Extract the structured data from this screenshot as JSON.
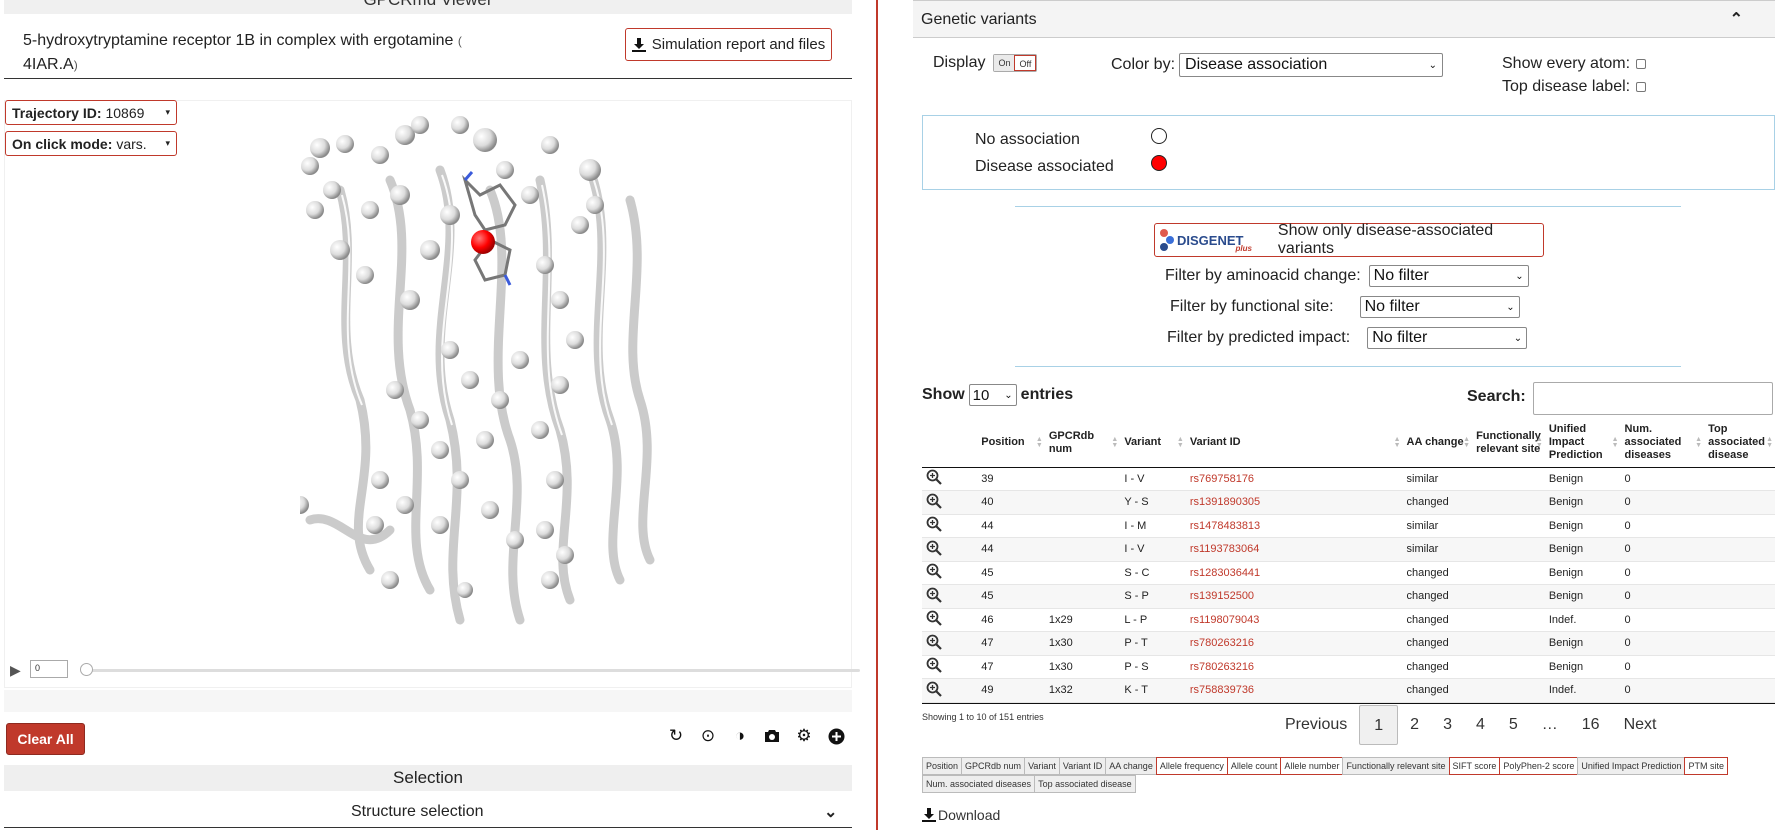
{
  "viewer": {
    "title": "GPCRmd Viewer",
    "sim_name": "5-hydroxytryptamine receptor 1B in complex with ergotamine",
    "sim_pdb_open": "(",
    "sim_pdb": "4IAR.A",
    "sim_pdb_close": ")",
    "report_button": "Simulation report and files",
    "trajectory_label": "Trajectory ID:",
    "trajectory_value": "10869",
    "onclick_label": "On click mode:",
    "onclick_value": "vars.",
    "frame_value": "0",
    "clear_all": "Clear All",
    "selection_title": "Selection",
    "structure_selection": "Structure selection"
  },
  "variants": {
    "header": "Genetic variants",
    "display_label": "Display",
    "toggle_on": "On",
    "toggle_off": "Off",
    "color_by_label": "Color by:",
    "color_by_value": "Disease association",
    "show_every_atom": "Show every atom:",
    "top_disease_label": "Top disease label:",
    "legend": [
      {
        "label": "No association",
        "color": "#ffffff"
      },
      {
        "label": "Disease associated",
        "color": "#ff0000"
      }
    ],
    "disgenet_logo": "DISGENET",
    "disgenet_plus": "plus",
    "disgenet_button": "Show only disease-associated variants",
    "filters": [
      {
        "label": "Filter by aminoacid change:",
        "value": "No filter"
      },
      {
        "label": "Filter by functional site:",
        "value": "No filter"
      },
      {
        "label": "Filter by predicted impact:",
        "value": "No filter"
      }
    ],
    "show_label": "Show",
    "show_value": "10",
    "entries_label": "entries",
    "search_label": "Search:",
    "columns": [
      "Position",
      "GPCRdb num",
      "Variant",
      "Variant ID",
      "AA change",
      "Functionally relevant site",
      "Unified Impact Prediction",
      "Num. associated diseases",
      "Top associated disease"
    ],
    "rows": [
      {
        "pos": "39",
        "gpcrdb": "",
        "variant": "I - V",
        "id": "rs769758176",
        "aa": "similar",
        "func": "",
        "impact": "Benign",
        "num": "0",
        "top": ""
      },
      {
        "pos": "40",
        "gpcrdb": "",
        "variant": "Y - S",
        "id": "rs1391890305",
        "aa": "changed",
        "func": "",
        "impact": "Benign",
        "num": "0",
        "top": ""
      },
      {
        "pos": "44",
        "gpcrdb": "",
        "variant": "I - M",
        "id": "rs1478483813",
        "aa": "similar",
        "func": "",
        "impact": "Benign",
        "num": "0",
        "top": ""
      },
      {
        "pos": "44",
        "gpcrdb": "",
        "variant": "I - V",
        "id": "rs1193783064",
        "aa": "similar",
        "func": "",
        "impact": "Benign",
        "num": "0",
        "top": ""
      },
      {
        "pos": "45",
        "gpcrdb": "",
        "variant": "S - C",
        "id": "rs1283036441",
        "aa": "changed",
        "func": "",
        "impact": "Benign",
        "num": "0",
        "top": ""
      },
      {
        "pos": "45",
        "gpcrdb": "",
        "variant": "S - P",
        "id": "rs139152500",
        "aa": "changed",
        "func": "",
        "impact": "Benign",
        "num": "0",
        "top": ""
      },
      {
        "pos": "46",
        "gpcrdb": "1x29",
        "variant": "L - P",
        "id": "rs1198079043",
        "aa": "changed",
        "func": "",
        "impact": "Indef.",
        "num": "0",
        "top": ""
      },
      {
        "pos": "47",
        "gpcrdb": "1x30",
        "variant": "P - T",
        "id": "rs780263216",
        "aa": "changed",
        "func": "",
        "impact": "Benign",
        "num": "0",
        "top": ""
      },
      {
        "pos": "47",
        "gpcrdb": "1x30",
        "variant": "P - S",
        "id": "rs780263216",
        "aa": "changed",
        "func": "",
        "impact": "Benign",
        "num": "0",
        "top": ""
      },
      {
        "pos": "49",
        "gpcrdb": "1x32",
        "variant": "K - T",
        "id": "rs758839736",
        "aa": "changed",
        "func": "",
        "impact": "Indef.",
        "num": "0",
        "top": ""
      }
    ],
    "info": "Showing 1 to 10 of 151 entries",
    "pager": {
      "prev": "Previous",
      "pages": [
        "1",
        "2",
        "3",
        "4",
        "5",
        "…",
        "16"
      ],
      "next": "Next"
    },
    "column_toggles": [
      {
        "label": "Position",
        "on": true
      },
      {
        "label": "GPCRdb num",
        "on": true
      },
      {
        "label": "Variant",
        "on": true
      },
      {
        "label": "Variant ID",
        "on": true
      },
      {
        "label": "AA change",
        "on": true
      },
      {
        "label": "Allele frequency",
        "on": false
      },
      {
        "label": "Allele count",
        "on": false
      },
      {
        "label": "Allele number",
        "on": false
      },
      {
        "label": "Functionally relevant site",
        "on": true
      },
      {
        "label": "SIFT score",
        "on": false
      },
      {
        "label": "PolyPhen-2 score",
        "on": false
      },
      {
        "label": "Unified Impact Prediction",
        "on": true
      },
      {
        "label": "PTM site",
        "on": false
      },
      {
        "label": "Num. associated diseases",
        "on": true
      },
      {
        "label": "Top associated disease",
        "on": true
      }
    ],
    "download": "Download"
  },
  "colors": {
    "accent": "#c0392b",
    "legend_border": "#a8d1e6",
    "link": "#c0392b"
  }
}
